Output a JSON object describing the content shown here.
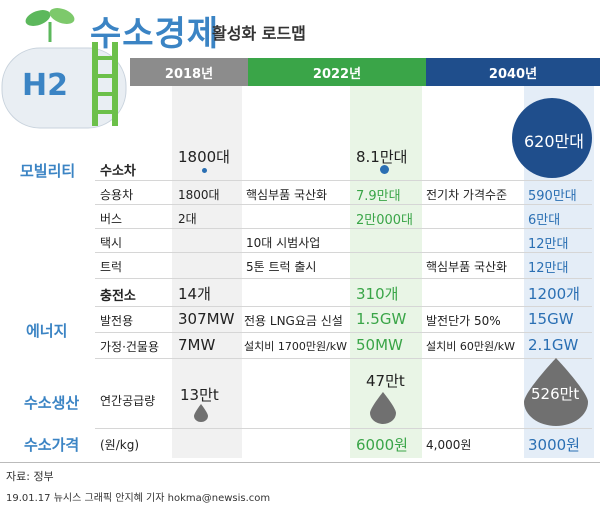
{
  "header": {
    "title": "수소경제",
    "subtitle": "활성화 로드맵",
    "h2_label": "H2"
  },
  "timeline": [
    "2018년",
    "2022년",
    "2040년"
  ],
  "categories": {
    "mobility": "모빌리티",
    "energy": "에너지",
    "production": "수소생산",
    "price": "수소가격"
  },
  "rows": {
    "car": {
      "label": "수소차",
      "v2018": "1800대",
      "v2022": "8.1만대",
      "v2040": "620만대"
    },
    "truck_commercial": {
      "label": "승용차",
      "v2018": "1800대",
      "note1": "핵심부품 국산화",
      "v2022": "7.9만대",
      "note2": "전기차 가격수준",
      "v2040": "590만대"
    },
    "bus": {
      "label": "버스",
      "v2018": "2대",
      "v2022": "2만000대",
      "v2040": "6만대"
    },
    "taxi": {
      "label": "택시",
      "note1": "10대 시범사업",
      "v2040": "12만대"
    },
    "truck": {
      "label": "트럭",
      "note1": "5톤 트럭 출시",
      "note2": "핵심부품 국산화",
      "v2040": "12만대"
    },
    "station": {
      "label": "충전소",
      "v2018": "14개",
      "v2022": "310개",
      "v2040": "1200개"
    },
    "power": {
      "label": "발전용",
      "v2018": "307MW",
      "note1": "전용 LNG요금 신설",
      "v2022": "1.5GW",
      "note2": "발전단가 50%",
      "v2040": "15GW"
    },
    "home": {
      "label": "가정·건물용",
      "v2018": "7MW",
      "note1": "설치비 1700만원/kW",
      "v2022": "50MW",
      "note2": "설치비 60만원/kW",
      "v2040": "2.1GW"
    },
    "supply": {
      "label": "연간공급량",
      "v2018": "13만t",
      "v2022": "47만t",
      "v2040": "526만t"
    },
    "price": {
      "label": "(원/kg)",
      "v2022": "6000원",
      "note2": "4,000원",
      "v2040": "3000원"
    }
  },
  "footer": {
    "source": "자료: 정부",
    "credit": "19.01.17 뉴시스 그래픽 안지혜 기자 hokma@newsis.com"
  },
  "colors": {
    "blue": "#3b84c4",
    "green": "#3aa548",
    "navy": "#1f4e8c",
    "gray": "#8c8c8c"
  }
}
